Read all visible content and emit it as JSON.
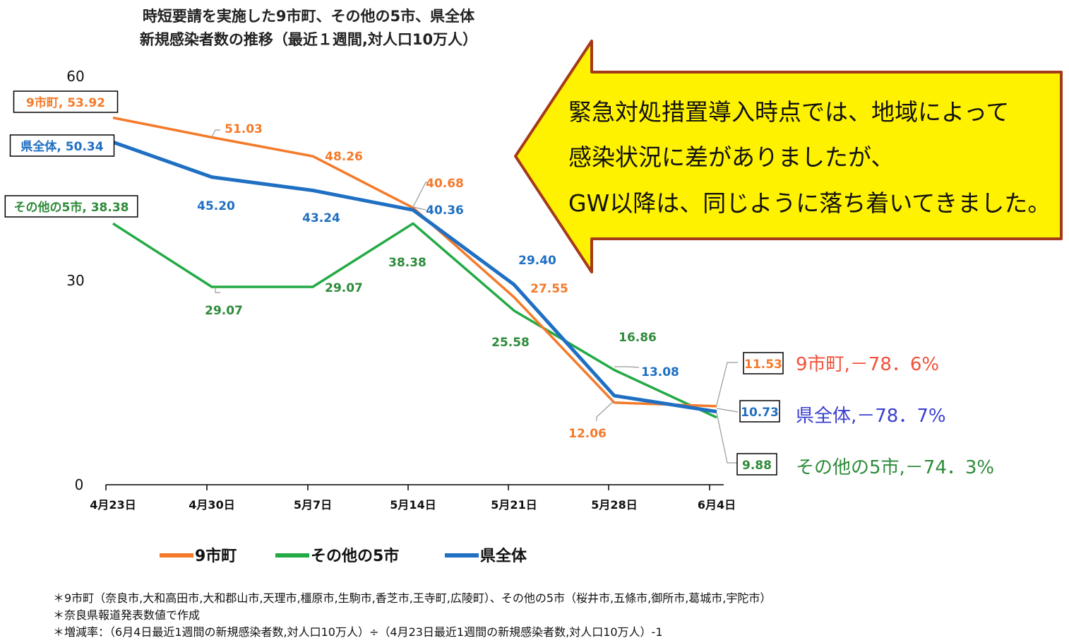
{
  "colors": {
    "nine": "#F47A2A",
    "other": "#22AA44",
    "pref": "#1F6FC2",
    "callout_fill": "#FFF200",
    "callout_border": "#A33A1A",
    "end_pref_text": "#3B3FCF"
  },
  "title": {
    "line1": "時短要請を実施した9市町、その他の5市、県全体",
    "line2": "新規感染者数の推移（最近１週間,対人口10万人）"
  },
  "callout": {
    "lines": [
      "緊急対処措置導入時点では、地域によって",
      "感染状況に差がありましたが、",
      "GW以降は、同じように落ち着いてきました。"
    ]
  },
  "chart_data": {
    "type": "line",
    "categories": [
      "4月23日",
      "4月30日",
      "5月7日",
      "5月14日",
      "5月21日",
      "5月28日",
      "6月4日"
    ],
    "ylim": [
      0,
      60
    ],
    "yticks": [
      "0",
      "30",
      "60"
    ],
    "series": [
      {
        "name": "9市町",
        "values": [
          53.92,
          51.03,
          48.26,
          40.68,
          27.55,
          12.06,
          11.53
        ],
        "labels": [
          "9市町, 53.92",
          "51.03",
          "48.26",
          "40.68",
          "27.55",
          "12.06",
          "11.53"
        ]
      },
      {
        "name": "その他の5市",
        "values": [
          38.38,
          29.07,
          29.07,
          38.38,
          25.58,
          16.86,
          9.88
        ],
        "labels": [
          "その他の5市, 38.38",
          "29.07",
          "29.07",
          "38.38",
          "25.58",
          "16.86",
          "9.88"
        ]
      },
      {
        "name": "県全体",
        "values": [
          50.34,
          45.2,
          43.24,
          40.36,
          29.4,
          13.08,
          10.73
        ],
        "labels": [
          "県全体, 50.34",
          "45.20",
          "43.24",
          "40.36",
          "29.40",
          "13.08",
          "10.73"
        ]
      }
    ],
    "end_labels": [
      "9市町,－78．6%",
      "その他の5市,－74．3%",
      "県全体,－78．7%"
    ],
    "legend": [
      "9市町",
      "その他の5市",
      "県全体"
    ]
  },
  "notes": [
    "＊9市町（奈良市,大和高田市,大和郡山市,天理市,橿原市,生駒市,香芝市,王寺町,広陵町）、その他の5市（桜井市,五條市,御所市,葛城市,宇陀市）",
    "＊奈良県報道発表数値で作成",
    "＊増減率：（6月4日最近1週間の新規感染者数,対人口10万人）÷（4月23日最近1週間の新規感染者数,対人口10万人）-1"
  ]
}
